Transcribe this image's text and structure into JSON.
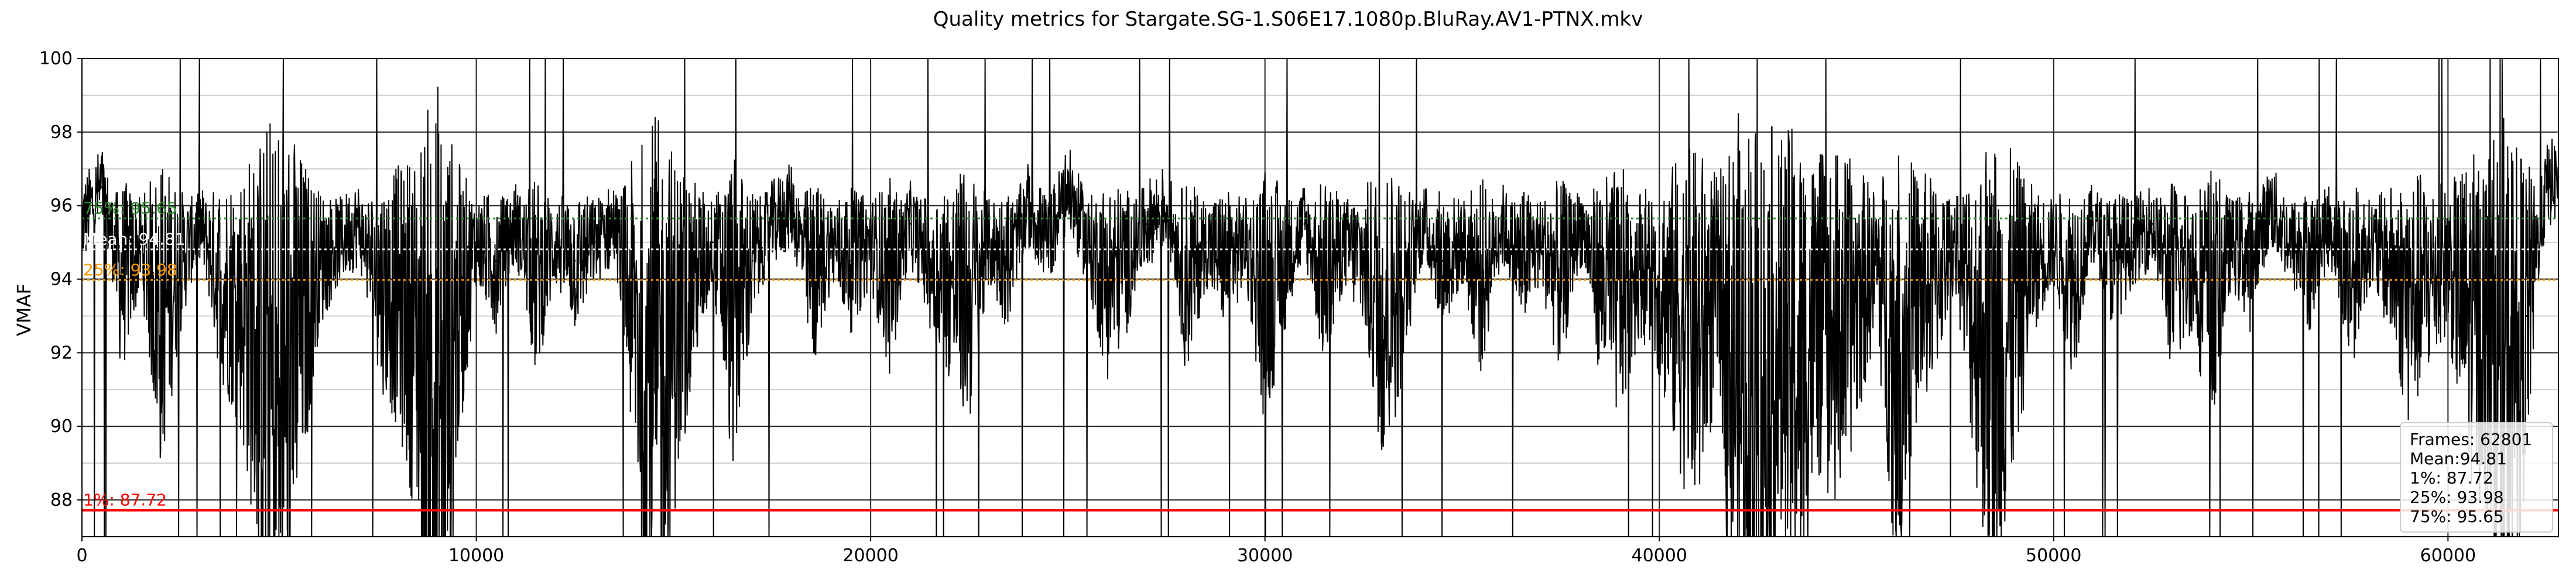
{
  "chart_data": {
    "type": "line",
    "title": "Quality metrics for Stargate.SG-1.S06E17.1080p.BluRay.AV1-PTNX.mkv",
    "xlabel": "",
    "ylabel": "VMAF",
    "xlim": [
      0,
      62801
    ],
    "ylim": [
      87,
      100
    ],
    "x_ticks": [
      0,
      10000,
      20000,
      30000,
      40000,
      50000,
      60000
    ],
    "y_major_ticks": [
      88,
      90,
      92,
      94,
      96,
      98,
      100
    ],
    "y_minor_grid": [
      87,
      89,
      91,
      93,
      95,
      97,
      99
    ],
    "grid": true,
    "series": [
      {
        "color": "#000000",
        "frame_count": 62801,
        "y_min": 87,
        "y_max": 100,
        "x": [
          0,
          500,
          1000,
          1500,
          2000,
          2500,
          3000,
          3500,
          4000,
          4500,
          5000,
          5500,
          6000,
          6500,
          7000,
          7500,
          8000,
          8500,
          9000,
          9500,
          10000,
          10500,
          11000,
          11500,
          12000,
          12500,
          13000,
          13500,
          14000,
          14500,
          15000,
          15500,
          16000,
          16500,
          17000,
          17500,
          18000,
          18500,
          19000,
          19500,
          20000,
          20500,
          21000,
          21500,
          22000,
          22500,
          23000,
          23500,
          24000,
          24500,
          25000,
          25500,
          26000,
          26500,
          27000,
          27500,
          28000,
          28500,
          29000,
          29500,
          30000,
          30500,
          31000,
          31500,
          32000,
          32500,
          33000,
          33500,
          34000,
          34500,
          35000,
          35500,
          36000,
          36500,
          37000,
          37500,
          38000,
          38500,
          39000,
          39500,
          40000,
          40500,
          41000,
          41500,
          42000,
          42500,
          43000,
          43500,
          44000,
          44500,
          45000,
          45500,
          46000,
          46500,
          47000,
          47500,
          48000,
          48500,
          49000,
          49500,
          50000,
          50500,
          51000,
          51500,
          52000,
          52500,
          53000,
          53500,
          54000,
          54500,
          55000,
          55500,
          56000,
          56500,
          57000,
          57500,
          58000,
          58500,
          59000,
          59500,
          60000,
          60500,
          61000,
          61500,
          62000,
          62500,
          62801
        ],
        "y": [
          95.5,
          96.5,
          94.0,
          95.0,
          93.0,
          94.5,
          95.5,
          94.0,
          93.5,
          92.0,
          90.0,
          92.5,
          94.5,
          95.0,
          95.5,
          94.0,
          93.5,
          92.5,
          89.0,
          93.0,
          95.0,
          94.5,
          95.5,
          94.0,
          95.0,
          94.5,
          95.0,
          95.5,
          93.0,
          91.0,
          92.5,
          94.0,
          95.0,
          93.0,
          94.5,
          95.5,
          96.0,
          94.0,
          95.0,
          94.5,
          95.0,
          94.0,
          95.5,
          94.5,
          94.0,
          93.5,
          95.0,
          94.5,
          96.0,
          95.0,
          96.5,
          95.0,
          94.0,
          94.5,
          95.5,
          96.0,
          94.0,
          95.0,
          94.5,
          95.0,
          93.5,
          94.5,
          95.5,
          94.0,
          95.0,
          94.5,
          93.0,
          94.0,
          95.5,
          94.5,
          95.0,
          94.0,
          95.5,
          94.5,
          95.0,
          94.0,
          95.5,
          94.0,
          93.5,
          94.5,
          94.0,
          93.0,
          92.5,
          94.0,
          91.0,
          90.5,
          92.0,
          91.5,
          93.0,
          92.5,
          93.5,
          94.5,
          92.0,
          93.5,
          94.0,
          95.0,
          93.0,
          91.5,
          93.0,
          94.5,
          95.0,
          94.0,
          95.5,
          94.5,
          95.0,
          95.5,
          94.0,
          94.5,
          93.5,
          95.0,
          94.5,
          96.0,
          95.0,
          94.5,
          95.5,
          94.0,
          95.0,
          94.5,
          93.5,
          94.0,
          94.5,
          93.0,
          92.5,
          91.0,
          93.0,
          96.5,
          96.8
        ]
      }
    ],
    "reference_lines": [
      {
        "label": "75%: 95.65",
        "value": 95.65,
        "color": "#2e8b2e",
        "style": "dotted"
      },
      {
        "label": "Mean: 94.81",
        "value": 94.81,
        "color": "#ffffff",
        "style": "dotted"
      },
      {
        "label": "25%: 93.98",
        "value": 93.98,
        "color": "#ff9900",
        "style": "dotted"
      },
      {
        "label": "1%: 87.72",
        "value": 87.72,
        "color": "#ff0000",
        "style": "solid"
      }
    ],
    "legend": {
      "placement": "bottom-right",
      "lines": [
        "Frames: 62801",
        "Mean:94.81",
        "1%: 87.72",
        "25%: 93.98",
        "75%: 95.65"
      ]
    }
  }
}
